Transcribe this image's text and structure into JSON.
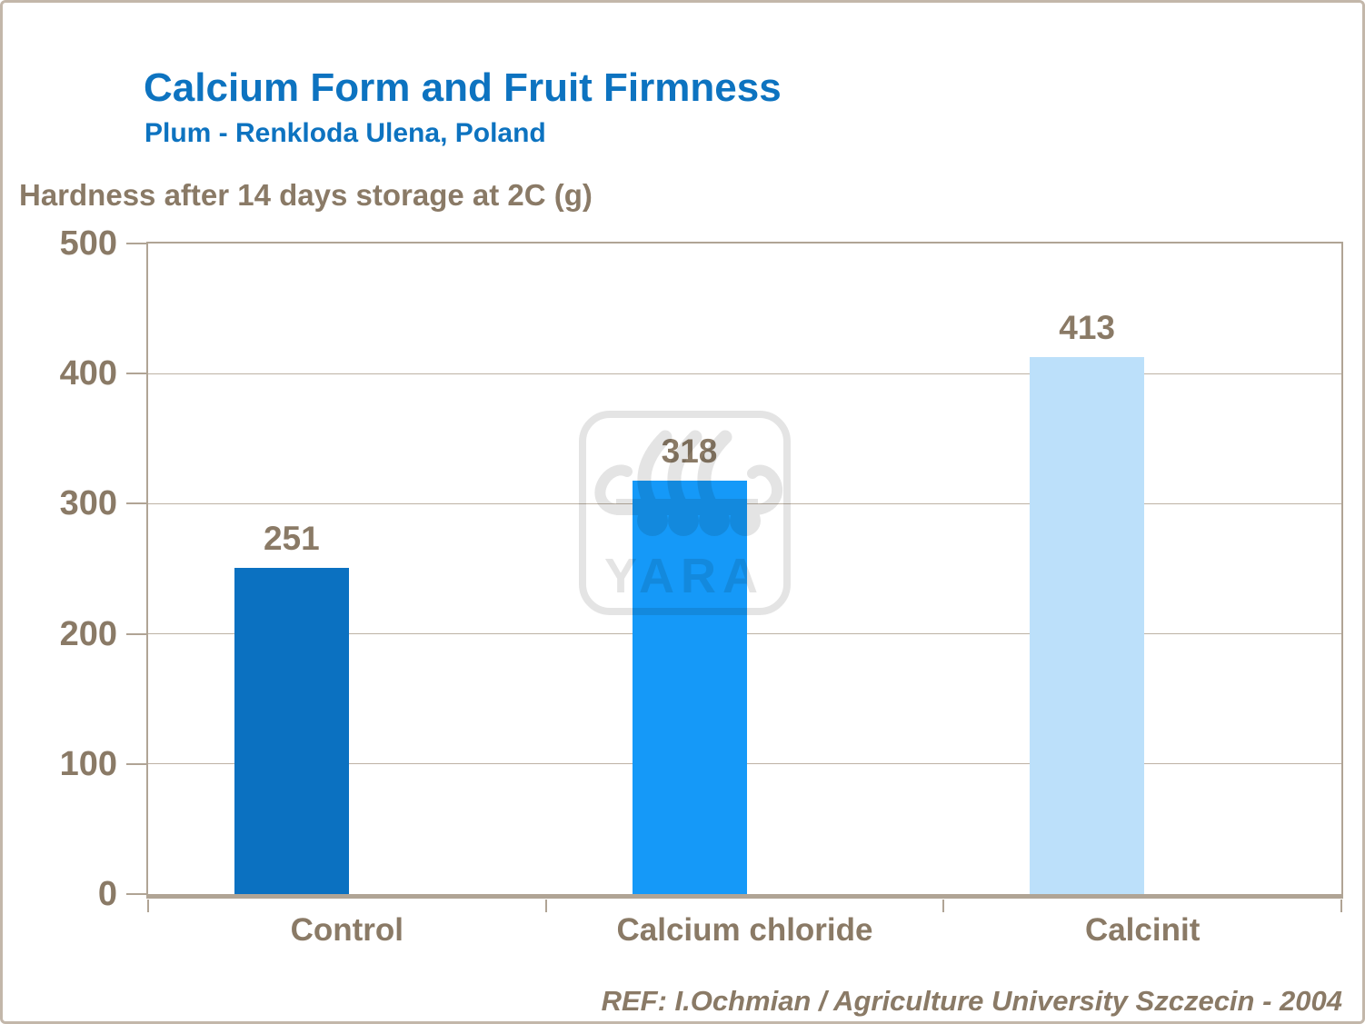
{
  "header": {
    "title": "Calcium Form and Fruit Firmness",
    "subtitle": "Plum - Renkloda Ulena, Poland",
    "title_color": "#0d73c0"
  },
  "footer": {
    "reference": "REF: I.Ochmian / Agriculture University Szczecin - 2004"
  },
  "watermark": {
    "name": "yara-logo",
    "text": "YARA",
    "color": "#e4e4e4"
  },
  "chart_data": {
    "type": "bar",
    "title": "Calcium Form and Fruit Firmness",
    "subtitle": "Plum - Renkloda Ulena, Poland",
    "ylabel": "Hardness after 14 days storage at 2C (g)",
    "xlabel": "",
    "categories": [
      "Control",
      "Calcium chloride",
      "Calcinit"
    ],
    "values": [
      251,
      318,
      413
    ],
    "value_labels": [
      "251",
      "318",
      "413"
    ],
    "bar_colors": [
      "#0b71c1",
      "#1599f8",
      "#bce0fa"
    ],
    "ylim": [
      0,
      500
    ],
    "ytick_step": 100,
    "ytick_labels": [
      "0",
      "100",
      "200",
      "300",
      "400",
      "500"
    ],
    "grid": true,
    "legend": "none",
    "grid_color": "#bdb2a4",
    "axis_color": "#b0a495",
    "text_color": "#8a7a66"
  }
}
